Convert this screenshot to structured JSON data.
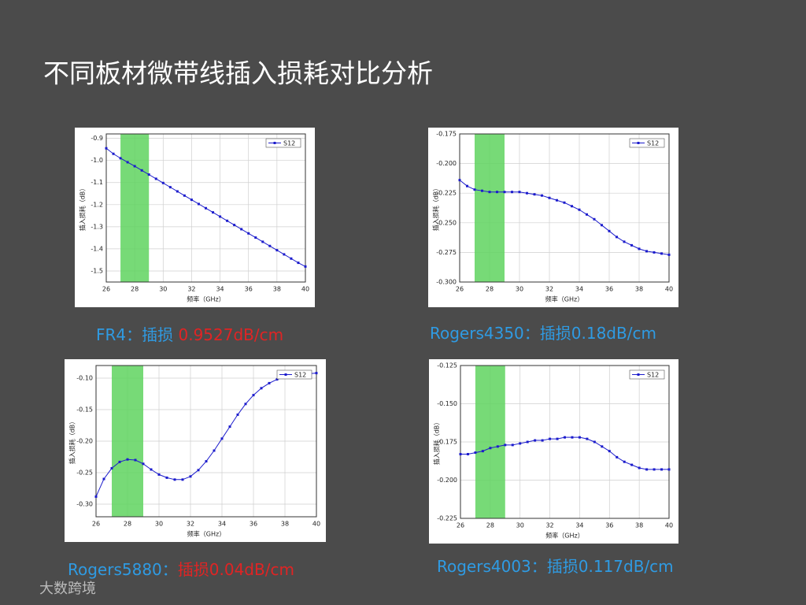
{
  "title": "不同板材微带线插入损耗对比分析",
  "watermark": "大数跨境",
  "captions": [
    [
      {
        "text": "FR4：插损 ",
        "color": "#2f9be3"
      },
      {
        "text": "0.9527dB/cm",
        "color": "#e02424"
      }
    ],
    [
      {
        "text": "Rogers4350：插损0.18dB/cm",
        "color": "#2f9be3"
      }
    ],
    [
      {
        "text": "Rogers5880：",
        "color": "#2f9be3"
      },
      {
        "text": "插损0.04dB/cm",
        "color": "#e02424"
      }
    ],
    [
      {
        "text": "Rogers4003：插损0.117dB/cm",
        "color": "#2f9be3"
      }
    ]
  ],
  "chart_data": [
    {
      "type": "line",
      "x_label": "频率（GHz）",
      "y_label": "插入损耗（dB）",
      "xlim": [
        26,
        40
      ],
      "xticks": [
        26,
        28,
        30,
        32,
        34,
        36,
        38,
        40
      ],
      "ylim": [
        -1.55,
        -0.88
      ],
      "yticks": [
        -0.9,
        {
          "value": -1,
          "label": "-1.0"
        },
        -1.1,
        -1.2,
        -1.3,
        -1.4,
        -1.5
      ],
      "grid": true,
      "legend": "upper right",
      "band": [
        27,
        29
      ],
      "band_color": "#5fd35f",
      "x": [
        26,
        26.5,
        27,
        27.5,
        28,
        28.5,
        29,
        29.5,
        30,
        30.5,
        31,
        31.5,
        32,
        32.5,
        33,
        33.5,
        34,
        34.5,
        35,
        35.5,
        36,
        36.5,
        37,
        37.5,
        38,
        38.5,
        39,
        39.5,
        40
      ],
      "series": [
        {
          "name": "S12",
          "color": "#1c1ccc",
          "values": [
            -0.945,
            -0.97,
            -0.99,
            -1.008,
            -1.026,
            -1.045,
            -1.064,
            -1.083,
            -1.102,
            -1.121,
            -1.14,
            -1.159,
            -1.178,
            -1.197,
            -1.216,
            -1.235,
            -1.254,
            -1.273,
            -1.292,
            -1.311,
            -1.33,
            -1.349,
            -1.368,
            -1.387,
            -1.406,
            -1.425,
            -1.444,
            -1.463,
            -1.48
          ]
        }
      ]
    },
    {
      "type": "line",
      "x_label": "频率（GHz）",
      "y_label": "插入损耗（dB）",
      "xlim": [
        26,
        40
      ],
      "xticks": [
        26,
        28,
        30,
        32,
        34,
        36,
        38,
        40
      ],
      "ylim": [
        -0.3,
        -0.175
      ],
      "yticks": [
        -0.175,
        {
          "value": -0.2,
          "label": "-0.200"
        },
        -0.225,
        {
          "value": -0.25,
          "label": "-0.250"
        },
        -0.275,
        {
          "value": -0.3,
          "label": "-0.300"
        }
      ],
      "grid": true,
      "legend": "upper right",
      "band": [
        27,
        29
      ],
      "band_color": "#5fd35f",
      "x": [
        26,
        26.5,
        27,
        27.5,
        28,
        28.5,
        29,
        29.5,
        30,
        30.5,
        31,
        31.5,
        32,
        32.5,
        33,
        33.5,
        34,
        34.5,
        35,
        35.5,
        36,
        36.5,
        37,
        37.5,
        38,
        38.5,
        39,
        39.5,
        40
      ],
      "series": [
        {
          "name": "S12",
          "color": "#1c1ccc",
          "values": [
            -0.214,
            -0.219,
            -0.222,
            -0.223,
            -0.224,
            -0.224,
            -0.224,
            -0.224,
            -0.224,
            -0.225,
            -0.226,
            -0.227,
            -0.229,
            -0.231,
            -0.233,
            -0.236,
            -0.239,
            -0.243,
            -0.247,
            -0.252,
            -0.257,
            -0.262,
            -0.266,
            -0.269,
            -0.272,
            -0.274,
            -0.275,
            -0.276,
            -0.277
          ]
        }
      ]
    },
    {
      "type": "line",
      "x_label": "频率（GHz）",
      "y_label": "插入损耗（dB）",
      "xlim": [
        26,
        40
      ],
      "xticks": [
        26,
        28,
        30,
        32,
        34,
        36,
        38,
        40
      ],
      "ylim": [
        -0.32,
        -0.08
      ],
      "yticks": [
        {
          "value": -0.1,
          "label": "-0.10"
        },
        -0.15,
        {
          "value": -0.2,
          "label": "-0.20"
        },
        -0.25,
        {
          "value": -0.3,
          "label": "-0.30"
        }
      ],
      "grid": true,
      "legend": "upper right",
      "band": [
        27,
        29
      ],
      "band_color": "#5fd35f",
      "x": [
        26,
        26.5,
        27,
        27.5,
        28,
        28.5,
        29,
        29.5,
        30,
        30.5,
        31,
        31.5,
        32,
        32.5,
        33,
        33.5,
        34,
        34.5,
        35,
        35.5,
        36,
        36.5,
        37,
        37.5,
        38,
        38.5,
        39,
        39.5,
        40
      ],
      "series": [
        {
          "name": "S12",
          "color": "#1c1ccc",
          "values": [
            -0.288,
            -0.26,
            -0.243,
            -0.233,
            -0.229,
            -0.23,
            -0.236,
            -0.245,
            -0.253,
            -0.258,
            -0.261,
            -0.261,
            -0.256,
            -0.246,
            -0.232,
            -0.215,
            -0.196,
            -0.177,
            -0.158,
            -0.141,
            -0.127,
            -0.116,
            -0.108,
            -0.102,
            -0.098,
            -0.096,
            -0.095,
            -0.093,
            -0.092
          ]
        }
      ]
    },
    {
      "type": "line",
      "x_label": "频率（GHz）",
      "y_label": "插入损耗（dB）",
      "xlim": [
        26,
        40
      ],
      "xticks": [
        26,
        28,
        30,
        32,
        34,
        36,
        38,
        40
      ],
      "ylim": [
        -0.225,
        -0.125
      ],
      "yticks": [
        -0.125,
        {
          "value": -0.15,
          "label": "-0.150"
        },
        -0.175,
        {
          "value": -0.2,
          "label": "-0.200"
        },
        -0.225
      ],
      "grid": true,
      "legend": "upper right",
      "band": [
        27,
        29
      ],
      "band_color": "#5fd35f",
      "x": [
        26,
        26.5,
        27,
        27.5,
        28,
        28.5,
        29,
        29.5,
        30,
        30.5,
        31,
        31.5,
        32,
        32.5,
        33,
        33.5,
        34,
        34.5,
        35,
        35.5,
        36,
        36.5,
        37,
        37.5,
        38,
        38.5,
        39,
        39.5,
        40
      ],
      "series": [
        {
          "name": "S12",
          "color": "#1c1ccc",
          "values": [
            -0.183,
            -0.183,
            -0.182,
            -0.181,
            -0.179,
            -0.178,
            -0.177,
            -0.177,
            -0.176,
            -0.175,
            -0.174,
            -0.174,
            -0.173,
            -0.173,
            -0.172,
            -0.172,
            -0.172,
            -0.173,
            -0.175,
            -0.178,
            -0.181,
            -0.185,
            -0.188,
            -0.19,
            -0.192,
            -0.193,
            -0.193,
            -0.193,
            -0.193
          ]
        }
      ]
    }
  ]
}
